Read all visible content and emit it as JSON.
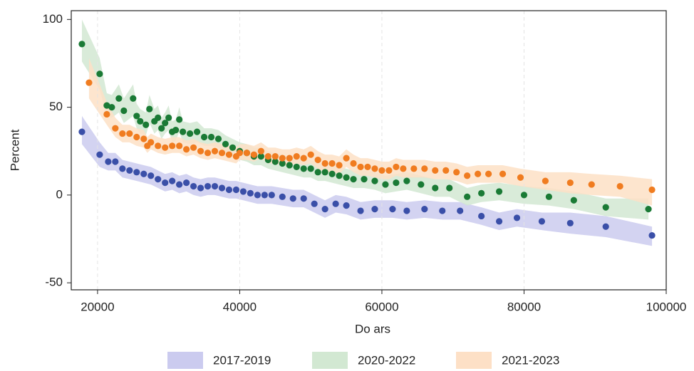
{
  "chart_data": {
    "type": "scatter",
    "x_label": "Do ars",
    "y_label": "Percent",
    "xlim": [
      16300,
      100000
    ],
    "ylim": [
      -54,
      105
    ],
    "xticks": [
      20000,
      40000,
      60000,
      80000,
      100000
    ],
    "yticks": [
      -50,
      0,
      50,
      100
    ],
    "grid": "x",
    "legend": "bottom",
    "series": [
      {
        "name": "2017-2019",
        "color": "#3a4fa8",
        "band_color": "#cbcbef",
        "x": [
          17800,
          20300,
          21500,
          22500,
          23500,
          24500,
          25500,
          26500,
          27500,
          28500,
          29500,
          30500,
          31500,
          32500,
          33500,
          34500,
          35500,
          36500,
          37500,
          38500,
          39500,
          40500,
          41500,
          42500,
          43500,
          44500,
          46000,
          47500,
          49000,
          50500,
          52000,
          53500,
          55000,
          57000,
          59000,
          61500,
          63500,
          66000,
          68500,
          71000,
          74000,
          76500,
          79000,
          82500,
          86500,
          91500,
          98000
        ],
        "values": [
          36,
          23,
          19,
          19,
          15,
          14,
          13,
          12,
          11,
          9,
          7,
          8,
          6,
          7,
          5,
          4,
          5,
          5,
          4,
          3,
          3,
          2,
          1,
          0,
          0,
          0,
          -1,
          -2,
          -2,
          -5,
          -8,
          -5,
          -6,
          -9,
          -8,
          -8,
          -9,
          -8,
          -9,
          -9,
          -12,
          -15,
          -13,
          -15,
          -16,
          -18,
          -23
        ],
        "lower": [
          29,
          16,
          14,
          14,
          10,
          9,
          8,
          7,
          6,
          4,
          2,
          3,
          1,
          2,
          0,
          -1,
          0,
          0,
          -1,
          -2,
          -2,
          -3,
          -4,
          -5,
          -5,
          -5,
          -6,
          -7,
          -7,
          -10,
          -13,
          -10,
          -11,
          -14,
          -13,
          -13,
          -14,
          -13,
          -14,
          -14,
          -17,
          -20,
          -18,
          -20,
          -22,
          -24,
          -29
        ],
        "upper": [
          45,
          30,
          24,
          24,
          20,
          19,
          18,
          17,
          16,
          14,
          12,
          13,
          11,
          12,
          10,
          9,
          10,
          10,
          9,
          8,
          8,
          7,
          6,
          5,
          5,
          5,
          4,
          3,
          3,
          0,
          -3,
          0,
          -1,
          -4,
          -3,
          -3,
          -4,
          -3,
          -4,
          -4,
          -7,
          -10,
          -8,
          -10,
          -10,
          -12,
          -18
        ]
      },
      {
        "name": "2020-2022",
        "color": "#1a7a35",
        "band_color": "#d2e8d2",
        "x": [
          17800,
          20300,
          21300,
          22000,
          23000,
          23700,
          25000,
          25500,
          26000,
          26800,
          27300,
          28000,
          28500,
          29000,
          29500,
          30000,
          30500,
          31000,
          31500,
          32000,
          33000,
          34000,
          35000,
          36000,
          37000,
          38000,
          39000,
          40000,
          41000,
          42000,
          43000,
          44000,
          45000,
          46000,
          47000,
          48000,
          49000,
          50000,
          51000,
          52000,
          53000,
          54000,
          55000,
          56000,
          57500,
          59000,
          60500,
          62000,
          63500,
          65500,
          67500,
          69500,
          72000,
          74000,
          76500,
          80000,
          83500,
          87000,
          91500,
          97500
        ],
        "values": [
          86,
          69,
          51,
          50,
          55,
          48,
          55,
          45,
          42,
          40,
          49,
          42,
          44,
          38,
          41,
          44,
          36,
          37,
          43,
          36,
          35,
          36,
          33,
          33,
          32,
          29,
          27,
          25,
          24,
          22,
          22,
          20,
          19,
          18,
          17,
          16,
          15,
          15,
          13,
          13,
          12,
          11,
          10,
          9,
          9,
          8,
          6,
          7,
          8,
          6,
          4,
          4,
          -1,
          1,
          2,
          0,
          -1,
          -3,
          -7,
          -8
        ],
        "lower": [
          76,
          60,
          45,
          44,
          47,
          41,
          45,
          38,
          35,
          34,
          41,
          35,
          37,
          32,
          35,
          37,
          30,
          31,
          36,
          30,
          29,
          30,
          28,
          28,
          27,
          24,
          22,
          20,
          19,
          17,
          17,
          15,
          14,
          13,
          12,
          11,
          10,
          10,
          8,
          8,
          7,
          6,
          5,
          4,
          4,
          3,
          1,
          2,
          3,
          1,
          -1,
          -1,
          -6,
          -4,
          -3,
          -5,
          -6,
          -8,
          -12,
          -14
        ],
        "upper": [
          100,
          78,
          58,
          57,
          63,
          55,
          63,
          52,
          49,
          47,
          57,
          49,
          51,
          44,
          47,
          51,
          42,
          43,
          50,
          42,
          41,
          42,
          38,
          38,
          37,
          34,
          32,
          30,
          29,
          27,
          27,
          25,
          24,
          23,
          22,
          21,
          20,
          20,
          18,
          18,
          17,
          16,
          15,
          14,
          14,
          13,
          11,
          12,
          13,
          11,
          9,
          9,
          4,
          6,
          7,
          5,
          4,
          2,
          -2,
          -2
        ]
      },
      {
        "name": "2021-2023",
        "color": "#f07c20",
        "band_color": "#fde0c6",
        "x": [
          18800,
          21300,
          22500,
          23500,
          24500,
          25500,
          26500,
          27000,
          27500,
          28500,
          29500,
          30500,
          31500,
          32500,
          33500,
          34500,
          35500,
          36500,
          37500,
          38500,
          39500,
          40000,
          41000,
          42000,
          43000,
          44000,
          45000,
          46000,
          47000,
          48000,
          49000,
          50000,
          51000,
          52000,
          53000,
          54000,
          55000,
          56000,
          57000,
          58000,
          59000,
          60000,
          61000,
          62000,
          63000,
          64500,
          66000,
          67500,
          69000,
          70500,
          72000,
          73500,
          75000,
          77000,
          79500,
          83000,
          86500,
          89500,
          93500,
          98000
        ],
        "values": [
          64,
          46,
          38,
          35,
          35,
          33,
          32,
          28,
          30,
          28,
          27,
          28,
          28,
          26,
          27,
          25,
          24,
          25,
          24,
          23,
          22,
          24,
          24,
          23,
          25,
          22,
          22,
          21,
          21,
          22,
          21,
          23,
          20,
          18,
          18,
          17,
          21,
          18,
          16,
          16,
          15,
          14,
          14,
          16,
          15,
          15,
          15,
          14,
          14,
          13,
          11,
          12,
          12,
          12,
          10,
          8,
          7,
          6,
          5,
          3
        ],
        "lower": [
          55,
          40,
          33,
          30,
          30,
          28,
          27,
          24,
          26,
          24,
          23,
          24,
          24,
          22,
          23,
          21,
          20,
          21,
          20,
          19,
          18,
          20,
          20,
          19,
          21,
          18,
          18,
          17,
          17,
          18,
          17,
          18,
          15,
          13,
          13,
          12,
          16,
          13,
          11,
          11,
          10,
          9,
          9,
          11,
          10,
          10,
          10,
          9,
          9,
          8,
          6,
          7,
          7,
          7,
          5,
          3,
          1,
          0,
          -1,
          -6
        ],
        "upper": [
          78,
          53,
          44,
          40,
          40,
          38,
          37,
          33,
          35,
          33,
          32,
          33,
          33,
          31,
          32,
          30,
          29,
          30,
          29,
          28,
          27,
          29,
          29,
          28,
          30,
          27,
          27,
          26,
          26,
          27,
          26,
          28,
          25,
          23,
          23,
          22,
          26,
          23,
          21,
          21,
          20,
          19,
          19,
          21,
          20,
          20,
          20,
          19,
          19,
          18,
          16,
          17,
          17,
          17,
          15,
          13,
          13,
          12,
          11,
          9
        ]
      }
    ]
  }
}
